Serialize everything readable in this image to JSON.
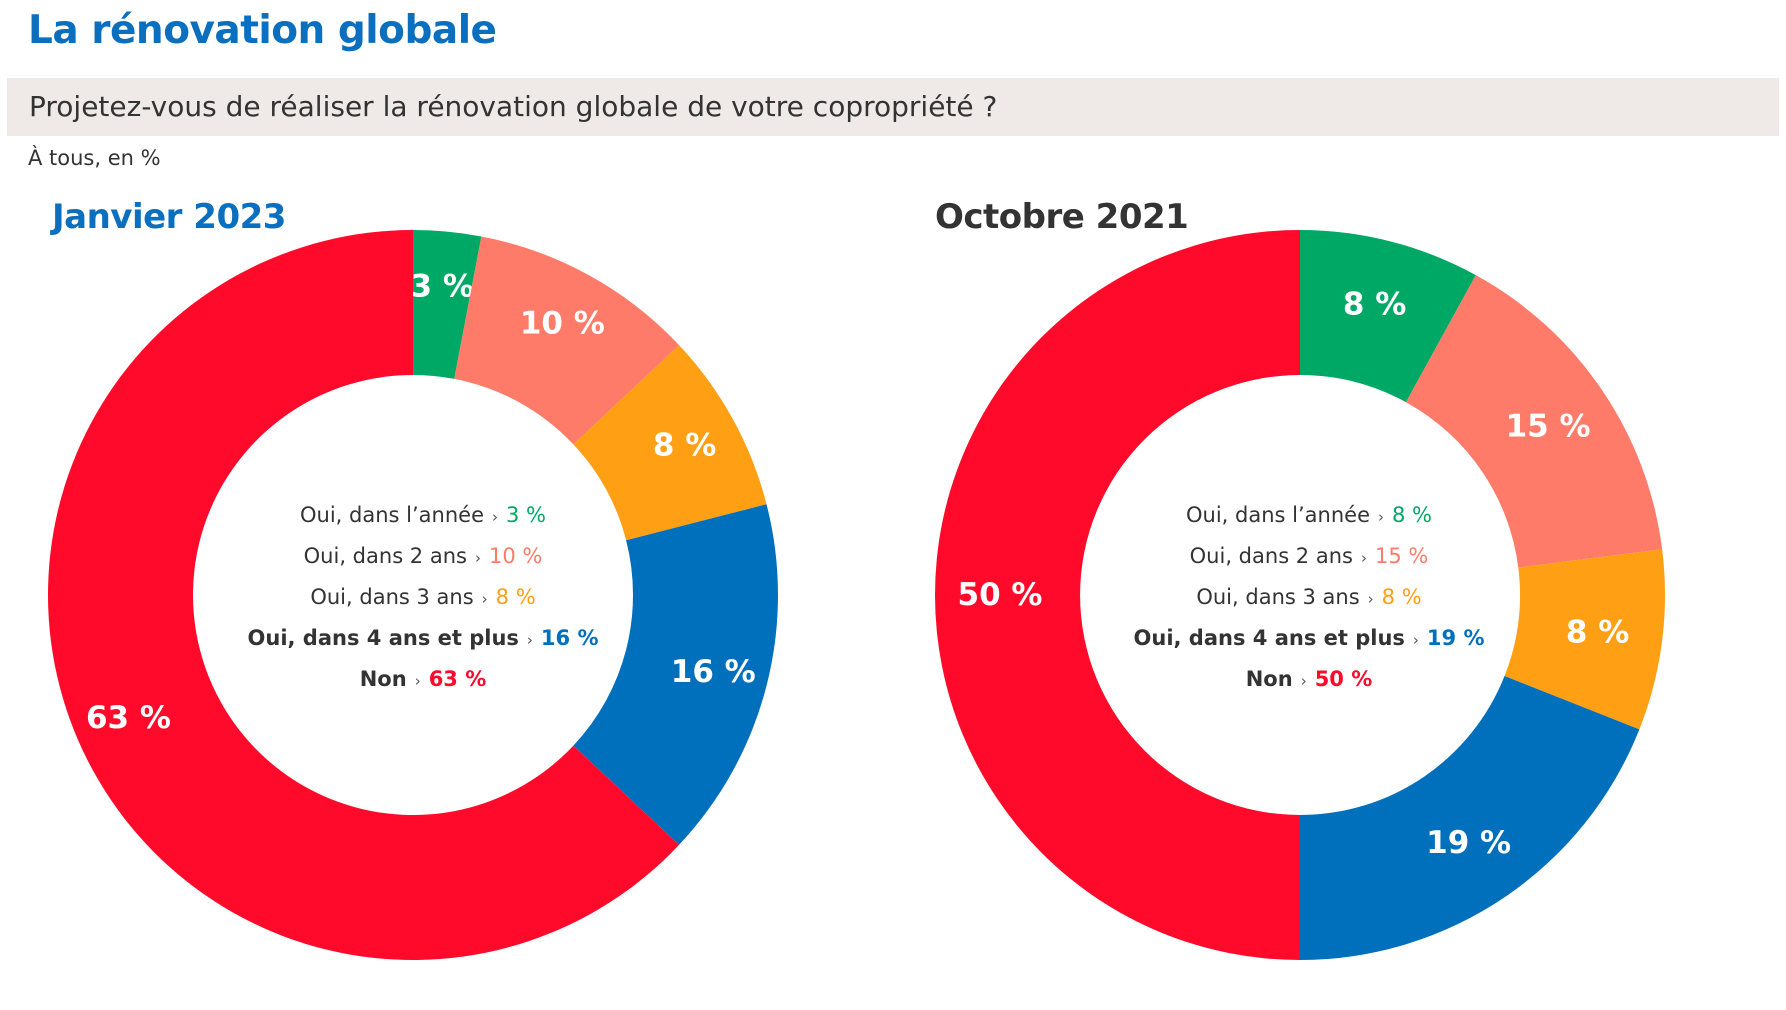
{
  "header": {
    "title": "La rénovation globale",
    "question": "Projetez-vous de réaliser la rénovation globale de votre copropriété ?",
    "base_note": "À tous, en %"
  },
  "colors": {
    "title_blue": "#0a6fbf",
    "question_bg": "#efeae7",
    "green": "#00a866",
    "salmon": "#ff7b69",
    "orange": "#ff9f13",
    "blue": "#0070bd",
    "red": "#ff0a2a",
    "dark": "#333333"
  },
  "legend_arrow": "›",
  "chart_data": [
    {
      "type": "pie",
      "title": "Janvier 2023",
      "title_color": "#0a6fbf",
      "categories": [
        "Oui, dans l’année",
        "Oui, dans 2 ans",
        "Oui, dans 3 ans",
        "Oui, dans 4 ans et plus",
        "Non"
      ],
      "values": [
        3,
        10,
        8,
        16,
        63
      ],
      "value_labels": [
        "3 %",
        "10 %",
        "8 %",
        "16 %",
        "63 %"
      ],
      "colors": [
        "#00a866",
        "#ff7b69",
        "#ff9f13",
        "#0070bd",
        "#ff0a2a"
      ],
      "strong": [
        false,
        false,
        false,
        true,
        true
      ],
      "donut": true
    },
    {
      "type": "pie",
      "title": "Octobre 2021",
      "title_color": "#333333",
      "categories": [
        "Oui, dans l’année",
        "Oui, dans 2 ans",
        "Oui, dans 3 ans",
        "Oui, dans 4 ans et plus",
        "Non"
      ],
      "values": [
        8,
        15,
        8,
        19,
        50
      ],
      "value_labels": [
        "8 %",
        "15 %",
        "8 %",
        "19 %",
        "50 %"
      ],
      "colors": [
        "#00a866",
        "#ff7b69",
        "#ff9f13",
        "#0070bd",
        "#ff0a2a"
      ],
      "strong": [
        false,
        false,
        false,
        true,
        true
      ],
      "donut": true
    }
  ]
}
